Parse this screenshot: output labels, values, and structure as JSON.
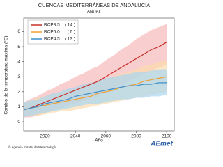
{
  "chart_data": {
    "type": "line",
    "title": "CUENCAS MEDITERRÁNEAS DE ANDALUCÍA",
    "subtitle": "ANUAL",
    "y_label": "Cambio de la temperatura máxima (°C)",
    "x_label": "Año",
    "footer": "© Agencia Estatal de Meteorología",
    "logo": "AEmet",
    "xlim": [
      2006,
      2105
    ],
    "xticks": [
      2020,
      2040,
      2060,
      2080,
      2100
    ],
    "ylim": [
      -0.6,
      6.9
    ],
    "yticks": [
      0,
      1,
      2,
      3,
      4,
      5,
      6
    ],
    "grid": false,
    "legend": "upper left",
    "x": [
      2006,
      2010,
      2015,
      2020,
      2025,
      2030,
      2035,
      2040,
      2045,
      2050,
      2055,
      2060,
      2065,
      2070,
      2075,
      2080,
      2085,
      2090,
      2095,
      2100
    ],
    "series": [
      {
        "name": "RCP8.5",
        "models": "( 14 )",
        "color": "#c8302c",
        "band_color": "#f6b9b9",
        "values": [
          0.8,
          0.9,
          1.1,
          1.3,
          1.5,
          1.7,
          1.9,
          2.1,
          2.3,
          2.5,
          2.7,
          3.0,
          3.3,
          3.6,
          3.9,
          4.2,
          4.5,
          4.8,
          5.0,
          5.3
        ],
        "lower": [
          0.3,
          0.3,
          0.4,
          0.6,
          0.8,
          0.9,
          1.1,
          1.2,
          1.4,
          1.6,
          1.7,
          1.9,
          2.2,
          2.4,
          2.7,
          2.9,
          3.2,
          3.4,
          3.6,
          3.8
        ],
        "upper": [
          1.3,
          1.5,
          1.7,
          2.0,
          2.2,
          2.5,
          2.7,
          3.0,
          3.2,
          3.5,
          3.7,
          4.1,
          4.4,
          4.8,
          5.1,
          5.5,
          5.8,
          6.1,
          6.3,
          6.5
        ]
      },
      {
        "name": "RCP6.0",
        "models": "( 6 )",
        "color": "#f0a030",
        "band_color": "#fcdcae",
        "values": [
          0.8,
          0.9,
          1.0,
          1.1,
          1.2,
          1.3,
          1.4,
          1.5,
          1.6,
          1.7,
          1.9,
          2.0,
          2.1,
          2.3,
          2.4,
          2.5,
          2.7,
          2.8,
          2.9,
          3.0
        ],
        "lower": [
          0.3,
          0.4,
          0.4,
          0.5,
          0.6,
          0.7,
          0.7,
          0.8,
          0.9,
          1.0,
          1.1,
          1.2,
          1.3,
          1.4,
          1.5,
          1.6,
          1.7,
          1.8,
          1.9,
          2.0
        ],
        "upper": [
          1.3,
          1.4,
          1.6,
          1.7,
          1.8,
          2.0,
          2.1,
          2.2,
          2.4,
          2.5,
          2.7,
          2.8,
          3.0,
          3.2,
          3.3,
          3.5,
          3.7,
          3.8,
          4.0,
          4.1
        ]
      },
      {
        "name": "RCP4.5",
        "models": "( 13 )",
        "color": "#3c8fcb",
        "band_color": "#a9d5ef",
        "values": [
          0.8,
          0.9,
          1.0,
          1.2,
          1.3,
          1.4,
          1.5,
          1.7,
          1.8,
          1.9,
          2.0,
          2.1,
          2.2,
          2.3,
          2.4,
          2.4,
          2.5,
          2.5,
          2.6,
          2.6
        ],
        "lower": [
          0.3,
          0.4,
          0.5,
          0.6,
          0.7,
          0.8,
          0.9,
          1.0,
          1.1,
          1.2,
          1.2,
          1.3,
          1.4,
          1.5,
          1.5,
          1.6,
          1.6,
          1.7,
          1.7,
          1.8
        ],
        "upper": [
          1.3,
          1.4,
          1.5,
          1.7,
          1.9,
          2.0,
          2.2,
          2.3,
          2.5,
          2.6,
          2.7,
          2.9,
          3.0,
          3.1,
          3.2,
          3.3,
          3.3,
          3.4,
          3.5,
          3.5
        ]
      }
    ]
  }
}
